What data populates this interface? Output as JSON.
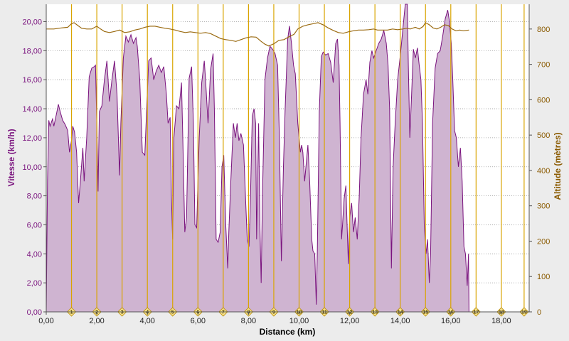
{
  "chart_data": {
    "type": "area",
    "xlabel": "Distance (km)",
    "ylabel": "Vitesse (km/h)",
    "y2label": "Altitude (mètres)",
    "xlim": [
      0,
      19.1
    ],
    "ylim": [
      0,
      21.2
    ],
    "y2lim": [
      0,
      870
    ],
    "x_ticks": [
      {
        "v": 0,
        "label": "0,00"
      },
      {
        "v": 2,
        "label": "2,00"
      },
      {
        "v": 4,
        "label": "4,00"
      },
      {
        "v": 6,
        "label": "6,00"
      },
      {
        "v": 8,
        "label": "8,00"
      },
      {
        "v": 10,
        "label": "10,00"
      },
      {
        "v": 12,
        "label": "12,00"
      },
      {
        "v": 14,
        "label": "14,00"
      },
      {
        "v": 16,
        "label": "16,00"
      },
      {
        "v": 18,
        "label": "18,00"
      }
    ],
    "y_ticks": [
      {
        "v": 0,
        "label": "0,00"
      },
      {
        "v": 2,
        "label": "2,00"
      },
      {
        "v": 4,
        "label": "4,00"
      },
      {
        "v": 6,
        "label": "6,00"
      },
      {
        "v": 8,
        "label": "8,00"
      },
      {
        "v": 10,
        "label": "10,00"
      },
      {
        "v": 12,
        "label": "12,00"
      },
      {
        "v": 14,
        "label": "14,00"
      },
      {
        "v": 16,
        "label": "16,00"
      },
      {
        "v": 18,
        "label": "18,00"
      },
      {
        "v": 20,
        "label": "20,00"
      }
    ],
    "y2_ticks": [
      {
        "v": 0,
        "label": "0"
      },
      {
        "v": 100,
        "label": "100"
      },
      {
        "v": 200,
        "label": "200"
      },
      {
        "v": 300,
        "label": "300"
      },
      {
        "v": 400,
        "label": "400"
      },
      {
        "v": 500,
        "label": "500"
      },
      {
        "v": 600,
        "label": "600"
      },
      {
        "v": 700,
        "label": "700"
      },
      {
        "v": 800,
        "label": "800"
      }
    ],
    "markers": [
      {
        "x": 1.0,
        "label": "1"
      },
      {
        "x": 2.0,
        "label": "2"
      },
      {
        "x": 3.0,
        "label": "3"
      },
      {
        "x": 4.0,
        "label": "4"
      },
      {
        "x": 5.0,
        "label": "5"
      },
      {
        "x": 6.0,
        "label": "6"
      },
      {
        "x": 7.0,
        "label": "7"
      },
      {
        "x": 8.0,
        "label": "8"
      },
      {
        "x": 9.0,
        "label": "9"
      },
      {
        "x": 10.0,
        "label": "10"
      },
      {
        "x": 11.0,
        "label": "11"
      },
      {
        "x": 12.0,
        "label": "12"
      },
      {
        "x": 13.0,
        "label": "13"
      },
      {
        "x": 14.0,
        "label": "14"
      },
      {
        "x": 15.0,
        "label": "15"
      },
      {
        "x": 16.0,
        "label": "16"
      },
      {
        "x": 17.0,
        "label": "17"
      },
      {
        "x": 18.0,
        "label": "18"
      },
      {
        "x": 18.9,
        "label": "19"
      }
    ],
    "speed": [
      [
        0.0,
        0.0
      ],
      [
        0.05,
        9.0
      ],
      [
        0.1,
        13.2
      ],
      [
        0.15,
        12.8
      ],
      [
        0.25,
        13.3
      ],
      [
        0.3,
        12.8
      ],
      [
        0.4,
        13.6
      ],
      [
        0.48,
        14.3
      ],
      [
        0.55,
        13.8
      ],
      [
        0.65,
        13.2
      ],
      [
        0.75,
        12.9
      ],
      [
        0.85,
        12.5
      ],
      [
        0.92,
        11.0
      ],
      [
        1.0,
        11.8
      ],
      [
        1.05,
        12.8
      ],
      [
        1.12,
        12.4
      ],
      [
        1.2,
        11.0
      ],
      [
        1.28,
        7.5
      ],
      [
        1.35,
        9.0
      ],
      [
        1.45,
        11.3
      ],
      [
        1.5,
        9.0
      ],
      [
        1.6,
        12.0
      ],
      [
        1.7,
        16.2
      ],
      [
        1.8,
        16.8
      ],
      [
        1.9,
        16.9
      ],
      [
        1.95,
        17.0
      ],
      [
        2.0,
        13.0
      ],
      [
        2.05,
        8.3
      ],
      [
        2.1,
        13.8
      ],
      [
        2.2,
        14.2
      ],
      [
        2.3,
        16.0
      ],
      [
        2.4,
        17.3
      ],
      [
        2.5,
        14.5
      ],
      [
        2.6,
        16.0
      ],
      [
        2.7,
        17.3
      ],
      [
        2.8,
        15.0
      ],
      [
        2.9,
        9.4
      ],
      [
        2.95,
        13.0
      ],
      [
        3.05,
        17.5
      ],
      [
        3.15,
        19.0
      ],
      [
        3.25,
        18.6
      ],
      [
        3.35,
        19.1
      ],
      [
        3.45,
        18.5
      ],
      [
        3.55,
        18.9
      ],
      [
        3.6,
        18.3
      ],
      [
        3.7,
        16.0
      ],
      [
        3.8,
        11.0
      ],
      [
        3.9,
        10.8
      ],
      [
        3.95,
        13.0
      ],
      [
        4.05,
        17.3
      ],
      [
        4.15,
        17.5
      ],
      [
        4.25,
        16.0
      ],
      [
        4.35,
        16.6
      ],
      [
        4.45,
        17.0
      ],
      [
        4.55,
        16.5
      ],
      [
        4.65,
        16.9
      ],
      [
        4.75,
        15.0
      ],
      [
        4.82,
        13.0
      ],
      [
        4.9,
        13.4
      ],
      [
        4.95,
        8.0
      ],
      [
        5.0,
        5.0
      ],
      [
        5.05,
        12.0
      ],
      [
        5.15,
        14.2
      ],
      [
        5.25,
        14.0
      ],
      [
        5.35,
        15.8
      ],
      [
        5.4,
        12.0
      ],
      [
        5.48,
        5.5
      ],
      [
        5.55,
        6.5
      ],
      [
        5.65,
        16.1
      ],
      [
        5.75,
        16.9
      ],
      [
        5.82,
        13.0
      ],
      [
        5.88,
        6.0
      ],
      [
        5.95,
        5.8
      ],
      [
        6.05,
        12.0
      ],
      [
        6.15,
        15.8
      ],
      [
        6.25,
        17.3
      ],
      [
        6.3,
        16.0
      ],
      [
        6.4,
        13.0
      ],
      [
        6.5,
        16.7
      ],
      [
        6.6,
        17.8
      ],
      [
        6.65,
        14.0
      ],
      [
        6.72,
        5.0
      ],
      [
        6.8,
        4.8
      ],
      [
        6.88,
        5.5
      ],
      [
        6.95,
        10.0
      ],
      [
        7.02,
        10.8
      ],
      [
        7.1,
        6.0
      ],
      [
        7.18,
        3.0
      ],
      [
        7.22,
        5.5
      ],
      [
        7.3,
        9.0
      ],
      [
        7.4,
        13.0
      ],
      [
        7.48,
        12.0
      ],
      [
        7.55,
        13.0
      ],
      [
        7.62,
        11.8
      ],
      [
        7.7,
        12.3
      ],
      [
        7.8,
        11.5
      ],
      [
        7.88,
        8.0
      ],
      [
        7.95,
        5.0
      ],
      [
        8.02,
        4.5
      ],
      [
        8.08,
        8.0
      ],
      [
        8.15,
        13.5
      ],
      [
        8.22,
        14.0
      ],
      [
        8.28,
        13.0
      ],
      [
        8.32,
        5.0
      ],
      [
        8.4,
        13.0
      ],
      [
        8.45,
        6.0
      ],
      [
        8.5,
        2.0
      ],
      [
        8.55,
        8.0
      ],
      [
        8.65,
        16.0
      ],
      [
        8.75,
        17.5
      ],
      [
        8.85,
        18.3
      ],
      [
        8.95,
        18.1
      ],
      [
        9.05,
        17.8
      ],
      [
        9.15,
        17.0
      ],
      [
        9.22,
        12.0
      ],
      [
        9.3,
        3.5
      ],
      [
        9.38,
        10.0
      ],
      [
        9.45,
        14.0
      ],
      [
        9.55,
        18.8
      ],
      [
        9.62,
        19.7
      ],
      [
        9.7,
        18.5
      ],
      [
        9.78,
        17.0
      ],
      [
        9.85,
        16.4
      ],
      [
        9.95,
        13.0
      ],
      [
        10.05,
        11.0
      ],
      [
        10.1,
        11.5
      ],
      [
        10.15,
        11.0
      ],
      [
        10.22,
        9.0
      ],
      [
        10.28,
        10.2
      ],
      [
        10.35,
        11.5
      ],
      [
        10.42,
        9.0
      ],
      [
        10.5,
        5.0
      ],
      [
        10.55,
        4.2
      ],
      [
        10.62,
        4.0
      ],
      [
        10.68,
        0.5
      ],
      [
        10.72,
        4.0
      ],
      [
        10.8,
        13.8
      ],
      [
        10.88,
        17.6
      ],
      [
        10.95,
        17.9
      ],
      [
        11.05,
        17.7
      ],
      [
        11.15,
        17.8
      ],
      [
        11.25,
        17.2
      ],
      [
        11.35,
        15.8
      ],
      [
        11.45,
        18.5
      ],
      [
        11.52,
        18.8
      ],
      [
        11.58,
        17.0
      ],
      [
        11.62,
        13.0
      ],
      [
        11.68,
        5.0
      ],
      [
        11.72,
        6.0
      ],
      [
        11.78,
        7.8
      ],
      [
        11.85,
        8.7
      ],
      [
        11.9,
        6.0
      ],
      [
        11.95,
        3.3
      ],
      [
        12.0,
        6.5
      ],
      [
        12.08,
        7.5
      ],
      [
        12.15,
        5.5
      ],
      [
        12.22,
        6.5
      ],
      [
        12.3,
        5.0
      ],
      [
        12.38,
        8.0
      ],
      [
        12.45,
        12.0
      ],
      [
        12.55,
        15.0
      ],
      [
        12.65,
        16.0
      ],
      [
        12.72,
        15.0
      ],
      [
        12.8,
        17.2
      ],
      [
        12.88,
        18.0
      ],
      [
        12.95,
        17.5
      ],
      [
        13.05,
        18.0
      ],
      [
        13.15,
        18.5
      ],
      [
        13.25,
        18.8
      ],
      [
        13.35,
        19.4
      ],
      [
        13.45,
        18.5
      ],
      [
        13.52,
        17.0
      ],
      [
        13.58,
        14.0
      ],
      [
        13.65,
        3.0
      ],
      [
        13.72,
        10.0
      ],
      [
        13.8,
        13.0
      ],
      [
        13.9,
        16.0
      ],
      [
        13.98,
        17.3
      ],
      [
        14.05,
        18.5
      ],
      [
        14.12,
        19.8
      ],
      [
        14.2,
        21.2
      ],
      [
        14.28,
        21.2
      ],
      [
        14.32,
        17.0
      ],
      [
        14.38,
        12.0
      ],
      [
        14.45,
        15.0
      ],
      [
        14.52,
        18.1
      ],
      [
        14.6,
        17.5
      ],
      [
        14.68,
        18.2
      ],
      [
        14.75,
        17.0
      ],
      [
        14.82,
        16.0
      ],
      [
        14.88,
        13.0
      ],
      [
        14.95,
        6.0
      ],
      [
        15.02,
        4.0
      ],
      [
        15.08,
        5.0
      ],
      [
        15.15,
        2.0
      ],
      [
        15.2,
        4.0
      ],
      [
        15.28,
        13.0
      ],
      [
        15.38,
        16.8
      ],
      [
        15.48,
        17.8
      ],
      [
        15.58,
        18.0
      ],
      [
        15.68,
        19.0
      ],
      [
        15.78,
        20.2
      ],
      [
        15.88,
        20.8
      ],
      [
        15.95,
        20.0
      ],
      [
        16.02,
        18.5
      ],
      [
        16.08,
        16.0
      ],
      [
        16.15,
        12.5
      ],
      [
        16.22,
        12.0
      ],
      [
        16.3,
        10.0
      ],
      [
        16.38,
        11.3
      ],
      [
        16.45,
        9.0
      ],
      [
        16.52,
        4.5
      ],
      [
        16.58,
        4.0
      ],
      [
        16.65,
        1.8
      ],
      [
        16.7,
        4.0
      ],
      [
        16.72,
        0.0
      ]
    ],
    "altitude": [
      [
        0.0,
        800
      ],
      [
        0.3,
        800
      ],
      [
        0.6,
        803
      ],
      [
        0.85,
        805
      ],
      [
        1.0,
        815
      ],
      [
        1.1,
        818
      ],
      [
        1.25,
        810
      ],
      [
        1.4,
        802
      ],
      [
        1.6,
        800
      ],
      [
        1.8,
        800
      ],
      [
        2.0,
        808
      ],
      [
        2.15,
        800
      ],
      [
        2.3,
        793
      ],
      [
        2.5,
        790
      ],
      [
        2.7,
        793
      ],
      [
        2.9,
        797
      ],
      [
        3.1,
        790
      ],
      [
        3.3,
        792
      ],
      [
        3.5,
        797
      ],
      [
        3.7,
        800
      ],
      [
        3.9,
        805
      ],
      [
        4.1,
        808
      ],
      [
        4.3,
        808
      ],
      [
        4.5,
        805
      ],
      [
        4.7,
        802
      ],
      [
        4.9,
        800
      ],
      [
        5.1,
        797
      ],
      [
        5.3,
        793
      ],
      [
        5.5,
        790
      ],
      [
        5.7,
        792
      ],
      [
        5.9,
        790
      ],
      [
        6.1,
        788
      ],
      [
        6.3,
        790
      ],
      [
        6.5,
        787
      ],
      [
        6.7,
        780
      ],
      [
        6.9,
        773
      ],
      [
        7.1,
        770
      ],
      [
        7.3,
        768
      ],
      [
        7.5,
        765
      ],
      [
        7.7,
        770
      ],
      [
        7.9,
        775
      ],
      [
        8.1,
        778
      ],
      [
        8.3,
        777
      ],
      [
        8.5,
        765
      ],
      [
        8.65,
        757
      ],
      [
        8.8,
        752
      ],
      [
        9.0,
        758
      ],
      [
        9.2,
        768
      ],
      [
        9.4,
        770
      ],
      [
        9.6,
        778
      ],
      [
        9.8,
        785
      ],
      [
        9.95,
        800
      ],
      [
        10.15,
        808
      ],
      [
        10.35,
        812
      ],
      [
        10.55,
        815
      ],
      [
        10.75,
        818
      ],
      [
        10.95,
        812
      ],
      [
        11.15,
        803
      ],
      [
        11.35,
        796
      ],
      [
        11.55,
        790
      ],
      [
        11.75,
        788
      ],
      [
        11.95,
        792
      ],
      [
        12.15,
        795
      ],
      [
        12.35,
        797
      ],
      [
        12.55,
        797
      ],
      [
        12.75,
        798
      ],
      [
        12.95,
        800
      ],
      [
        13.1,
        797
      ],
      [
        13.3,
        797
      ],
      [
        13.5,
        797
      ],
      [
        13.7,
        800
      ],
      [
        13.9,
        798
      ],
      [
        14.1,
        800
      ],
      [
        14.25,
        802
      ],
      [
        14.4,
        800
      ],
      [
        14.6,
        805
      ],
      [
        14.75,
        800
      ],
      [
        14.9,
        807
      ],
      [
        15.0,
        818
      ],
      [
        15.15,
        812
      ],
      [
        15.3,
        803
      ],
      [
        15.45,
        800
      ],
      [
        15.6,
        805
      ],
      [
        15.75,
        812
      ],
      [
        15.9,
        810
      ],
      [
        16.05,
        800
      ],
      [
        16.2,
        795
      ],
      [
        16.35,
        797
      ],
      [
        16.5,
        795
      ],
      [
        16.72,
        797
      ]
    ]
  }
}
